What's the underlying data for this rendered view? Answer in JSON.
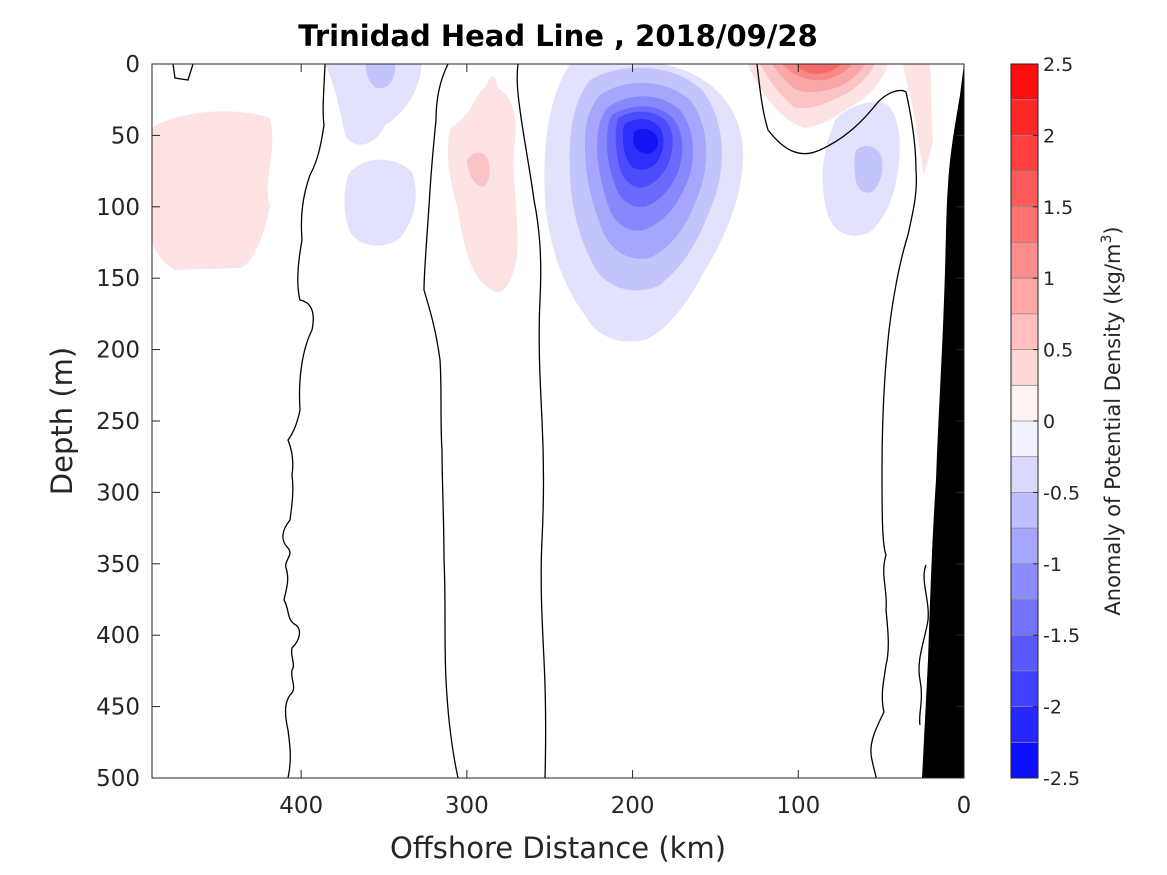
{
  "chart_data": {
    "type": "heatmap",
    "title": "Trinidad Head Line , 2018/09/28",
    "xlabel": "Offshore Distance (km)",
    "ylabel": "Depth (m)",
    "colorbar_label": "Anomaly of Potential Density (kg/m",
    "colorbar_label_sup": "3",
    "colorbar_label_end": ")",
    "xlim": [
      490,
      0
    ],
    "ylim": [
      0,
      500
    ],
    "x_reversed": true,
    "y_reversed": true,
    "x_ticks": [
      400,
      300,
      200,
      100,
      0
    ],
    "y_ticks": [
      0,
      50,
      100,
      150,
      200,
      250,
      300,
      350,
      400,
      450,
      500
    ],
    "clim": [
      -2.5,
      2.5
    ],
    "level_step": 0.25,
    "colorbar_ticks": [
      "2.5",
      "2",
      "1.5",
      "1",
      "0.5",
      "0",
      "-0.5",
      "-1",
      "-1.5",
      "-2",
      "-2.5"
    ],
    "colorbar_tick_values": [
      2.5,
      2,
      1.5,
      1,
      0.5,
      0,
      -0.5,
      -1,
      -1.5,
      -2,
      -2.5
    ],
    "colormap": {
      "positive": "#ff0000",
      "negative": "#0000ff",
      "neutral": "#ffffff"
    },
    "anomaly_features": [
      {
        "name": "offshore positive lens",
        "x_km": 445,
        "depth_m": 90,
        "peak": 0.4
      },
      {
        "name": "upper negative patch",
        "x_km": 355,
        "depth_m": 20,
        "peak": -0.8
      },
      {
        "name": "lower negative patch",
        "x_km": 350,
        "depth_m": 100,
        "peak": -0.5
      },
      {
        "name": "positive tongue",
        "x_km": 290,
        "depth_m": 80,
        "peak": 0.8
      },
      {
        "name": "central eddy core",
        "x_km": 195,
        "depth_m": 55,
        "peak": -2.0
      },
      {
        "name": "nearshore surface positive",
        "x_km": 85,
        "depth_m": 5,
        "peak": 1.3
      },
      {
        "name": "nearshore negative patch",
        "x_km": 65,
        "depth_m": 80,
        "peak": -0.9
      }
    ],
    "zero_contour_lines": [
      {
        "name": "contour-400km",
        "approx_x_km": 400
      },
      {
        "name": "contour-310km",
        "approx_x_km": 310
      },
      {
        "name": "contour-255km",
        "approx_x_km": 255
      },
      {
        "name": "contour-nearshore",
        "approx_x_km": 55
      }
    ],
    "bathymetry": {
      "shelf_bottom": [
        [
          0,
          0
        ],
        [
          25,
          500
        ]
      ],
      "fill_color": "#000000"
    }
  }
}
